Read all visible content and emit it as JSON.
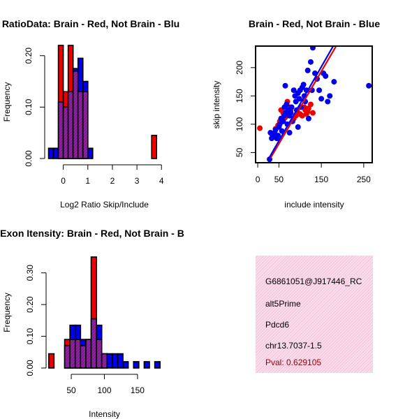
{
  "colors": {
    "red": "#ee0000",
    "blue": "#0000ee",
    "purple": "#7b1d9a",
    "info_bg": "#f6d3e6",
    "pval": "#a00000"
  },
  "chart_data": [
    {
      "type": "bar",
      "title": "RatioData: Brain - Red, Not Brain - Blu",
      "xlabel": "Log2 Ratio Skip/Include",
      "ylabel": "Frequency",
      "xlim": [
        -0.7,
        4.05
      ],
      "ylim": [
        0,
        0.22
      ],
      "xticks": [
        0,
        1,
        2,
        3,
        4
      ],
      "yticks": [
        0.0,
        0.1,
        0.2
      ],
      "ytick_labels": [
        "0.00",
        "0.10",
        "0.20"
      ],
      "bin_width": 0.2,
      "bin_start": -0.6,
      "series": [
        {
          "name": "Brain",
          "color": "red",
          "values": [
            0,
            0,
            0.22,
            0.13,
            0.22,
            0.17,
            0.13,
            0.13,
            0,
            0,
            0,
            0,
            0,
            0,
            0,
            0,
            0,
            0,
            0,
            0,
            0,
            0.045
          ]
        },
        {
          "name": "Not Brain",
          "color": "blue",
          "values": [
            0.02,
            0.02,
            0.11,
            0.1,
            0.13,
            0.175,
            0.195,
            0.15,
            0.02,
            0,
            0,
            0,
            0,
            0,
            0,
            0,
            0,
            0,
            0,
            0,
            0,
            0
          ]
        }
      ]
    },
    {
      "type": "scatter",
      "title": "Brain - Red, Not Brain - Blue",
      "xlabel": "include intensity",
      "ylabel": "skip intensity",
      "xlim": [
        -5,
        270
      ],
      "ylim": [
        32,
        238
      ],
      "xticks": [
        0,
        50,
        150,
        250
      ],
      "yticks": [
        50,
        100,
        150,
        200
      ],
      "series": [
        {
          "name": "Brain",
          "color": "red",
          "points": [
            [
              5,
              93
            ],
            [
              38,
              80
            ],
            [
              42,
              92
            ],
            [
              48,
              98
            ],
            [
              52,
              105
            ],
            [
              55,
              125
            ],
            [
              60,
              120
            ],
            [
              62,
              110
            ],
            [
              65,
              112
            ],
            [
              70,
              140
            ],
            [
              72,
              118
            ],
            [
              75,
              130
            ],
            [
              78,
              125
            ],
            [
              85,
              110
            ],
            [
              90,
              115
            ],
            [
              95,
              120
            ],
            [
              100,
              118
            ],
            [
              105,
              115
            ],
            [
              110,
              130
            ],
            [
              112,
              125
            ],
            [
              115,
              118
            ],
            [
              118,
              122
            ],
            [
              120,
              128
            ],
            [
              125,
              135
            ],
            [
              130,
              120
            ]
          ],
          "fit": [
            [
              30,
              40
            ],
            [
              185,
              238
            ]
          ]
        },
        {
          "name": "Not Brain",
          "color": "blue",
          "points": [
            [
              28,
              38
            ],
            [
              30,
              85
            ],
            [
              33,
              75
            ],
            [
              35,
              80
            ],
            [
              38,
              82
            ],
            [
              40,
              85
            ],
            [
              42,
              90
            ],
            [
              45,
              75
            ],
            [
              48,
              80
            ],
            [
              50,
              95
            ],
            [
              52,
              100
            ],
            [
              55,
              110
            ],
            [
              57,
              88
            ],
            [
              60,
              105
            ],
            [
              62,
              115
            ],
            [
              63,
              130
            ],
            [
              65,
              120
            ],
            [
              68,
              135
            ],
            [
              70,
              100
            ],
            [
              72,
              125
            ],
            [
              75,
              115
            ],
            [
              78,
              120
            ],
            [
              80,
              130
            ],
            [
              82,
              105
            ],
            [
              85,
              160
            ],
            [
              88,
              150
            ],
            [
              90,
              140
            ],
            [
              92,
              125
            ],
            [
              95,
              155
            ],
            [
              98,
              145
            ],
            [
              100,
              160
            ],
            [
              102,
              130
            ],
            [
              105,
              165
            ],
            [
              108,
              170
            ],
            [
              110,
              150
            ],
            [
              112,
              140
            ],
            [
              115,
              160
            ],
            [
              118,
              195
            ],
            [
              120,
              110
            ],
            [
              125,
              210
            ],
            [
              128,
              160
            ],
            [
              130,
              235
            ],
            [
              135,
              190
            ],
            [
              140,
              180
            ],
            [
              145,
              160
            ],
            [
              150,
              145
            ],
            [
              155,
              190
            ],
            [
              160,
              185
            ],
            [
              165,
              140
            ],
            [
              170,
              150
            ],
            [
              180,
              175
            ],
            [
              262,
              168
            ],
            [
              65,
              168
            ],
            [
              75,
              85
            ],
            [
              95,
              95
            ]
          ],
          "fit": [
            [
              25,
              38
            ],
            [
              178,
              238
            ]
          ]
        }
      ]
    },
    {
      "type": "bar",
      "title": "Exon Itensity: Brain - Red, Not Brain - B",
      "xlabel": "Intensity",
      "ylabel": "Frequency",
      "xlim": [
        12,
        188
      ],
      "ylim": [
        0,
        0.35
      ],
      "xticks": [
        50,
        100,
        150
      ],
      "yticks": [
        0.0,
        0.1,
        0.2,
        0.3
      ],
      "ytick_labels": [
        "0.00",
        "0.10",
        "0.20",
        "0.30"
      ],
      "bin_width": 8,
      "bin_start": 16,
      "series": [
        {
          "name": "Brain",
          "color": "red",
          "values": [
            0.045,
            0,
            0,
            0.09,
            0.09,
            0.09,
            0.07,
            0.09,
            0.35,
            0.09,
            0.045,
            0,
            0,
            0,
            0,
            0,
            0,
            0,
            0,
            0,
            0,
            0
          ]
        },
        {
          "name": "Not Brain",
          "color": "blue",
          "values": [
            0,
            0,
            0,
            0.07,
            0.135,
            0.135,
            0.09,
            0.09,
            0.155,
            0.135,
            0.045,
            0.045,
            0.045,
            0.045,
            0.02,
            0,
            0.02,
            0,
            0.02,
            0,
            0.02,
            0
          ]
        }
      ]
    }
  ],
  "info": {
    "id": "G6861051@J917446_RC",
    "event": "alt5Prime",
    "gene": "Pdcd6",
    "location": "chr13.7037-1.5",
    "pval": "Pval: 0.629105"
  }
}
